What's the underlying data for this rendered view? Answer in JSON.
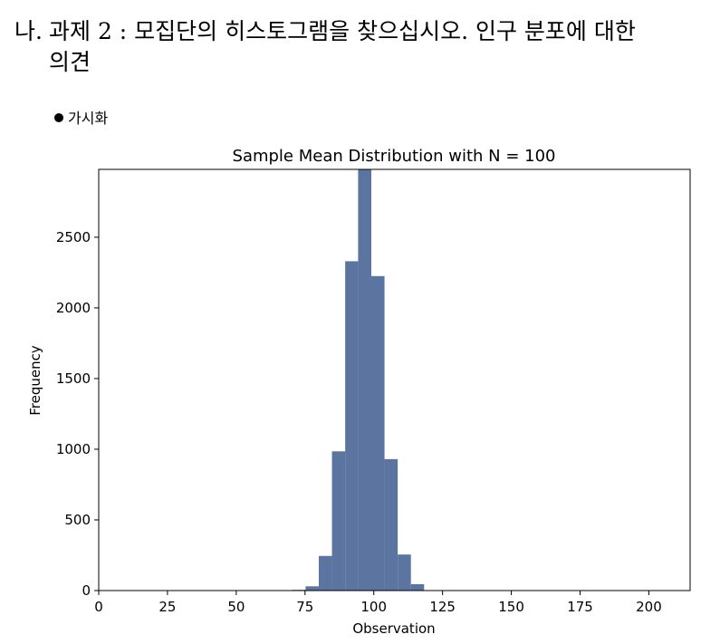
{
  "heading": {
    "marker": "나.",
    "line1": "과제 2 : 모집단의 히스토그램을 찾으십시오. 인구 분포에 대한",
    "line2": "의견"
  },
  "bullet": {
    "label": "가시화"
  },
  "chart_data": {
    "type": "bar",
    "title": "Sample Mean Distribution with N = 100",
    "xlabel": "Observation",
    "ylabel": "Frequency",
    "xlim": [
      0,
      215
    ],
    "ylim": [
      0,
      2980
    ],
    "xticks": [
      0,
      25,
      50,
      75,
      100,
      125,
      150,
      175,
      200
    ],
    "yticks": [
      0,
      500,
      1000,
      1500,
      2000,
      2500
    ],
    "bar_color": "#5c74a0",
    "bins": [
      {
        "x0": 70.4,
        "x1": 75.2,
        "value": 5
      },
      {
        "x0": 75.2,
        "x1": 80.0,
        "value": 30
      },
      {
        "x0": 80.0,
        "x1": 84.8,
        "value": 245
      },
      {
        "x0": 84.8,
        "x1": 89.6,
        "value": 985
      },
      {
        "x0": 89.6,
        "x1": 94.3,
        "value": 2330
      },
      {
        "x0": 94.3,
        "x1": 99.1,
        "value": 2980
      },
      {
        "x0": 99.1,
        "x1": 103.9,
        "value": 2225
      },
      {
        "x0": 103.9,
        "x1": 108.7,
        "value": 930
      },
      {
        "x0": 108.7,
        "x1": 113.5,
        "value": 255
      },
      {
        "x0": 113.5,
        "x1": 118.3,
        "value": 45
      }
    ]
  }
}
